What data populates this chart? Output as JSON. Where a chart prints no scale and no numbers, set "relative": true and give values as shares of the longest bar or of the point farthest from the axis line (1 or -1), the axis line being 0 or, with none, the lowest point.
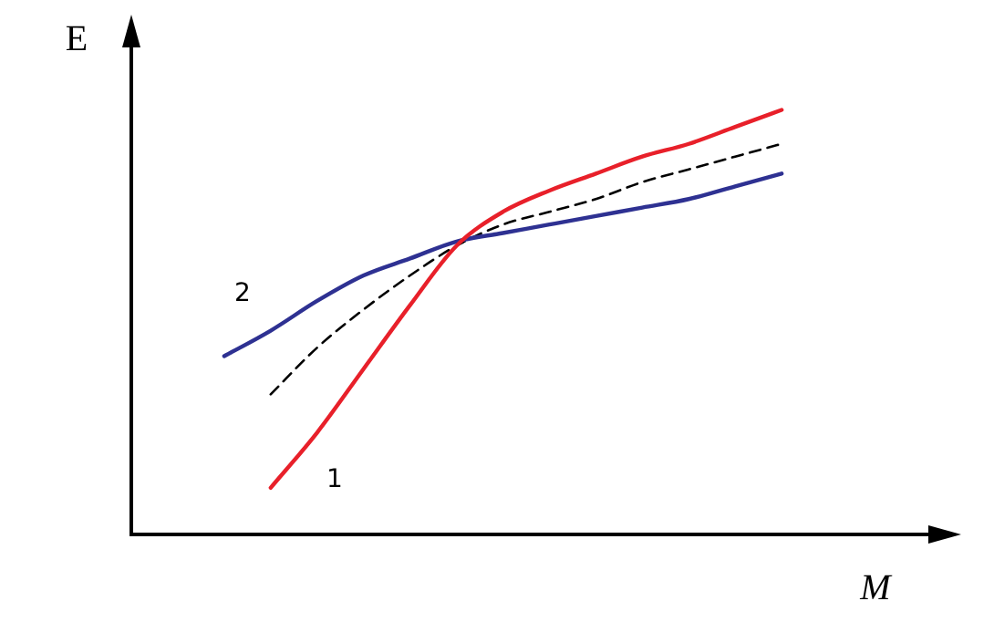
{
  "chart_data": {
    "type": "line",
    "relative": true,
    "xlabel": "M",
    "ylabel": "E",
    "tick_labels": false,
    "grid": false,
    "legend": false,
    "marker": "none",
    "categories": [
      null,
      null,
      null,
      null,
      null,
      null,
      null,
      null,
      null,
      null,
      null,
      null,
      null,
      null,
      null,
      null,
      null,
      null
    ],
    "series": [
      {
        "name": "1",
        "color": "#e8202a",
        "line_style": "solid",
        "values": [
          null,
          null,
          null,
          0.11,
          0.24,
          0.39,
          0.54,
          0.68,
          0.76,
          0.81,
          0.85,
          0.89,
          0.92,
          0.96,
          1,
          null,
          null,
          null
        ]
      },
      {
        "name": "2",
        "color": "#2e3192",
        "line_style": "solid",
        "values": [
          null,
          null,
          0.42,
          0.48,
          0.55,
          0.61,
          0.65,
          0.69,
          0.71,
          0.73,
          0.75,
          0.77,
          0.79,
          0.82,
          0.85,
          null,
          null,
          null
        ]
      },
      {
        "color": "#000000",
        "line_style": "dashed",
        "values": [
          null,
          null,
          null,
          0.33,
          0.44,
          0.53,
          0.61,
          0.68,
          0.73,
          0.76,
          0.79,
          0.83,
          0.86,
          0.89,
          0.92,
          null,
          null,
          null
        ]
      }
    ]
  }
}
